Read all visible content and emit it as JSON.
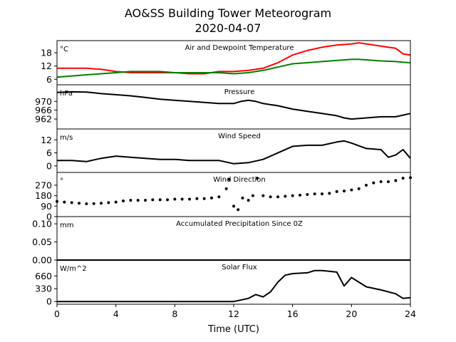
{
  "figure": {
    "title": "AO&SS Building Tower Meteorogram",
    "date": "2020-04-07",
    "xlabel": "Time (UTC)",
    "colors": {
      "temperature": "#ff0000",
      "dewpoint": "#008000",
      "line": "#000000"
    }
  },
  "chart_data": [
    {
      "type": "line",
      "title": "Air and Dewpoint Temperature",
      "ylabel": "°C",
      "xlim": [
        0,
        24
      ],
      "ylim": [
        3.5,
        23.5
      ],
      "yticks": [
        6,
        12,
        18
      ],
      "xticks": [
        0,
        4,
        8,
        12,
        16,
        20,
        24
      ],
      "x": [
        0,
        1,
        2,
        3,
        4,
        5,
        6,
        7,
        8,
        9,
        10,
        11,
        12,
        13,
        14,
        15,
        16,
        17,
        18,
        19,
        20,
        20.5,
        21,
        22,
        23,
        23.5,
        24
      ],
      "series": [
        {
          "name": "Air Temperature",
          "color": "#ff0000",
          "values": [
            11,
            11,
            11,
            10.5,
            9.5,
            9,
            9,
            9,
            9,
            8.5,
            8.5,
            9.5,
            9.5,
            10,
            11,
            13.5,
            17,
            19,
            20.5,
            21.5,
            22,
            22.5,
            22,
            21,
            20,
            17.5,
            17
          ]
        },
        {
          "name": "Dewpoint Temperature",
          "color": "#008000",
          "values": [
            7,
            7.5,
            8,
            8.5,
            9,
            9.5,
            9.5,
            9.5,
            9,
            9,
            9,
            9,
            8.5,
            9,
            10,
            11.5,
            13,
            13.5,
            14,
            14.5,
            15,
            15,
            14.8,
            14.3,
            14,
            13.7,
            13.5
          ]
        }
      ]
    },
    {
      "type": "line",
      "title": "Pressure",
      "ylabel": "hPa",
      "xlim": [
        0,
        24
      ],
      "ylim": [
        957.5,
        977.5
      ],
      "yticks": [
        962,
        966,
        970
      ],
      "x": [
        0,
        1,
        2,
        3,
        4,
        5,
        6,
        7,
        8,
        9,
        10,
        11,
        12,
        12.5,
        13,
        13.5,
        14,
        15,
        16,
        17,
        18,
        19,
        19.5,
        20,
        21,
        22,
        23,
        24
      ],
      "series": [
        {
          "name": "Pressure",
          "color": "#000000",
          "values": [
            974,
            974.3,
            974.2,
            973.5,
            973,
            972.5,
            971.8,
            971,
            970.5,
            970,
            969.5,
            969,
            969,
            970,
            970.5,
            970,
            969,
            968,
            966.5,
            965.5,
            964.5,
            963.5,
            962.5,
            962,
            962.5,
            963,
            963,
            964.5
          ]
        }
      ]
    },
    {
      "type": "line",
      "title": "Wind Speed",
      "ylabel": "m/s",
      "xlim": [
        0,
        24
      ],
      "ylim": [
        -3,
        17
      ],
      "yticks": [
        0,
        6,
        12
      ],
      "x": [
        0,
        1,
        2,
        3,
        4,
        5,
        6,
        7,
        8,
        9,
        10,
        11,
        12,
        13,
        14,
        15,
        16,
        17,
        18,
        19,
        19.5,
        20,
        21,
        22,
        22.5,
        23,
        23.5,
        24
      ],
      "series": [
        {
          "name": "Wind Speed",
          "color": "#000000",
          "values": [
            2.5,
            2.5,
            2,
            3.5,
            4.5,
            4,
            3.5,
            3,
            3,
            2.5,
            2.5,
            2.5,
            1,
            1.5,
            3,
            6,
            9,
            9.5,
            9.5,
            11,
            11.5,
            10.5,
            8,
            7.5,
            4,
            5,
            7.5,
            3.5
          ]
        }
      ]
    },
    {
      "type": "scatter",
      "title": "Wind Direction",
      "ylabel": "°",
      "xlim": [
        0,
        24
      ],
      "ylim": [
        0,
        380
      ],
      "yticks": [
        0,
        90,
        180,
        270
      ],
      "x": [
        0,
        0.5,
        1,
        1.5,
        2,
        2.5,
        3,
        3.5,
        4,
        4.5,
        5,
        5.5,
        6,
        6.5,
        7,
        7.5,
        8,
        8.5,
        9,
        9.5,
        10,
        10.5,
        11,
        11.5,
        11.7,
        12,
        12.3,
        12.6,
        13,
        13.3,
        13.6,
        14,
        14.5,
        15,
        15.5,
        16,
        16.5,
        17,
        17.5,
        18,
        18.5,
        19,
        19.5,
        20,
        20.5,
        21,
        21.5,
        22,
        22.5,
        23,
        23.5,
        24
      ],
      "series": [
        {
          "name": "Wind Direction",
          "color": "#000000",
          "values": [
            130,
            125,
            120,
            115,
            110,
            112,
            115,
            120,
            125,
            135,
            140,
            140,
            140,
            145,
            145,
            145,
            150,
            150,
            150,
            155,
            155,
            160,
            170,
            240,
            320,
            90,
            60,
            160,
            140,
            180,
            330,
            180,
            170,
            170,
            175,
            180,
            185,
            190,
            195,
            195,
            200,
            215,
            220,
            230,
            240,
            270,
            290,
            300,
            300,
            310,
            330,
            335
          ]
        }
      ]
    },
    {
      "type": "line",
      "title": "Accumulated Precipitation Since 0Z",
      "ylabel": "mm",
      "xlim": [
        0,
        24
      ],
      "ylim": [
        0,
        0.12
      ],
      "yticks": [
        0.0,
        0.05,
        0.1
      ],
      "ytick_labels": [
        "0.00",
        "0.05",
        "0.10"
      ],
      "x": [
        0,
        24
      ],
      "series": [
        {
          "name": "Precipitation",
          "color": "#000000",
          "values": [
            0,
            0
          ]
        }
      ]
    },
    {
      "type": "line",
      "title": "Solar Flux",
      "ylabel": "W/m^2",
      "xlim": [
        0,
        24
      ],
      "ylim": [
        -70,
        1070
      ],
      "yticks": [
        0,
        330,
        660
      ],
      "xticks": [
        0,
        4,
        8,
        12,
        16,
        20,
        24
      ],
      "x": [
        0,
        12,
        13,
        13.5,
        14,
        14.5,
        15,
        15.5,
        16,
        17,
        17.5,
        18,
        18.5,
        19,
        19.5,
        20,
        21,
        22,
        23,
        23.5,
        24
      ],
      "series": [
        {
          "name": "Solar Flux",
          "color": "#000000",
          "values": [
            0,
            0,
            80,
            180,
            120,
            250,
            500,
            680,
            720,
            740,
            800,
            800,
            780,
            760,
            400,
            620,
            380,
            300,
            200,
            80,
            100
          ]
        }
      ]
    }
  ]
}
